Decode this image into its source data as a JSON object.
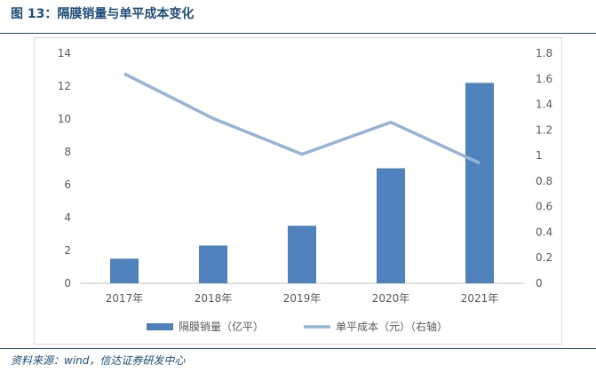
{
  "figure": {
    "title": "图 13：隔膜销量与单平成本变化",
    "source": "资料来源：wind，信达证券研发中心"
  },
  "colors": {
    "bar": "#4F81BD",
    "line": "#95B3D7",
    "title": "#1F4E79"
  },
  "chart_data": {
    "type": "bar",
    "title": "",
    "categories": [
      "2017年",
      "2018年",
      "2019年",
      "2020年",
      "2021年"
    ],
    "series": [
      {
        "name": "隔膜销量（亿平）",
        "type": "bar",
        "axis": "left",
        "values": [
          1.5,
          2.3,
          3.5,
          7.0,
          12.2
        ]
      },
      {
        "name": "单平成本（元）（右轴）",
        "type": "line",
        "axis": "right",
        "values": [
          1.64,
          1.29,
          1.01,
          1.26,
          0.94
        ]
      }
    ],
    "y_left": {
      "min": 0,
      "max": 14,
      "ticks": [
        "0",
        "2",
        "4",
        "6",
        "8",
        "10",
        "12",
        "14"
      ]
    },
    "y_right": {
      "min": 0,
      "max": 1.8,
      "ticks": [
        "0",
        "0.2",
        "0.4",
        "0.6",
        "0.8",
        "1",
        "1.2",
        "1.4",
        "1.6",
        "1.8"
      ]
    },
    "grid": false,
    "legend": "bottom"
  }
}
